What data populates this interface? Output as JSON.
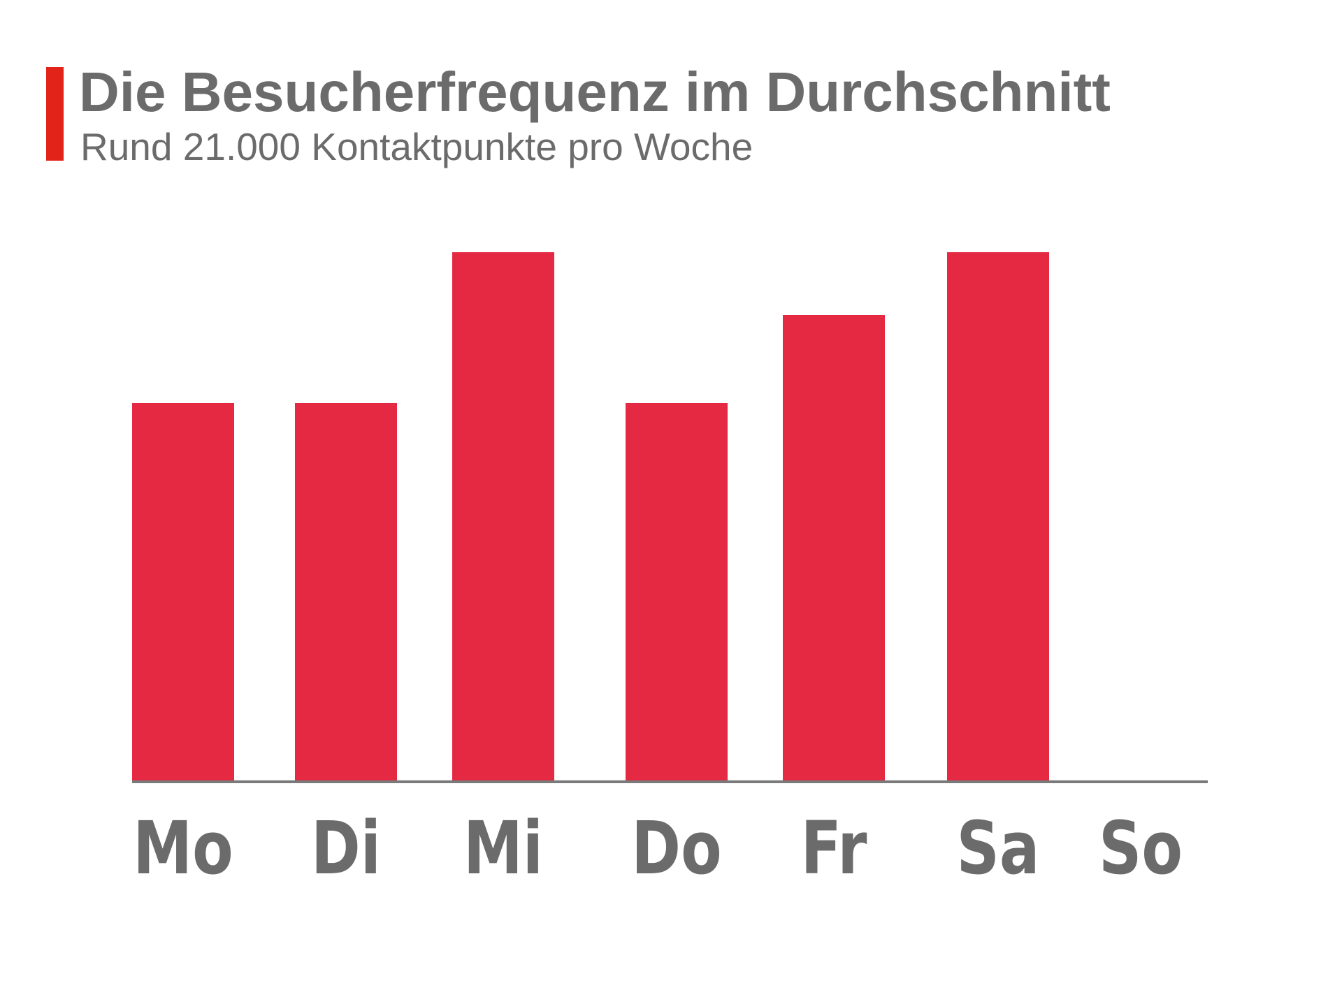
{
  "header": {
    "title": "Die Besucherfrequenz im Durchschnitt",
    "subtitle": "Rund 21.000 Kontaktpunkte pro Woche"
  },
  "colors": {
    "bar": "#e52942",
    "accent": "#e2231a",
    "text": "#6b6b6b",
    "axis": "#7a7a7a"
  },
  "chart_data": {
    "type": "bar",
    "categories": [
      "Mo",
      "Di",
      "Mi",
      "Do",
      "Fr",
      "Sa",
      "So"
    ],
    "values": [
      6,
      6,
      8.4,
      6,
      7.4,
      8.4,
      0
    ],
    "title": "Die Besucherfrequenz im Durchschnitt",
    "subtitle": "Rund 21.000 Kontaktpunkte pro Woche",
    "xlabel": "",
    "ylabel": "",
    "ylim": [
      0,
      10
    ],
    "grid": false,
    "legend": "none"
  }
}
